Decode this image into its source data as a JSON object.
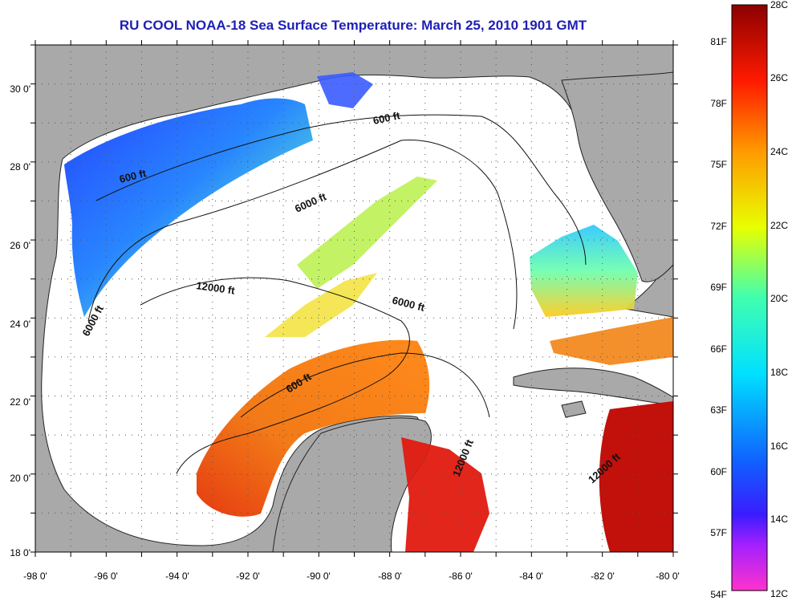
{
  "title": "RU COOL  NOAA-18  Sea Surface Temperature:  March 25, 2010 1901 GMT",
  "x_axis": {
    "ticks": [
      "-98 0'",
      "-96 0'",
      "-94 0'",
      "-92 0'",
      "-90 0'",
      "-88 0'",
      "-86 0'",
      "-84 0'",
      "-82 0'",
      "-80 0'"
    ]
  },
  "y_axis": {
    "ticks": [
      "30 0'",
      "28 0'",
      "26 0'",
      "24 0'",
      "22 0'",
      "20 0'",
      "18 0'"
    ]
  },
  "contour_labels": [
    "600 ft",
    "600 ft",
    "6000 ft",
    "6000 ft",
    "6000 ft",
    "12000 ft",
    "600 ft",
    "12000 ft",
    "12000 ft"
  ],
  "colorbar": {
    "celsius_labels": [
      "28C",
      "26C",
      "24C",
      "22C",
      "20C",
      "18C",
      "16C",
      "14C",
      "12C"
    ],
    "fahrenheit_labels": [
      "81F",
      "78F",
      "75F",
      "72F",
      "69F",
      "66F",
      "63F",
      "60F",
      "57F",
      "54F"
    ],
    "range_c": [
      12,
      28
    ]
  },
  "colors": {
    "land": "#a9a9a9",
    "ocean_nodata": "#ffffff",
    "title": "#1f1fb4",
    "grid": "#555555"
  }
}
